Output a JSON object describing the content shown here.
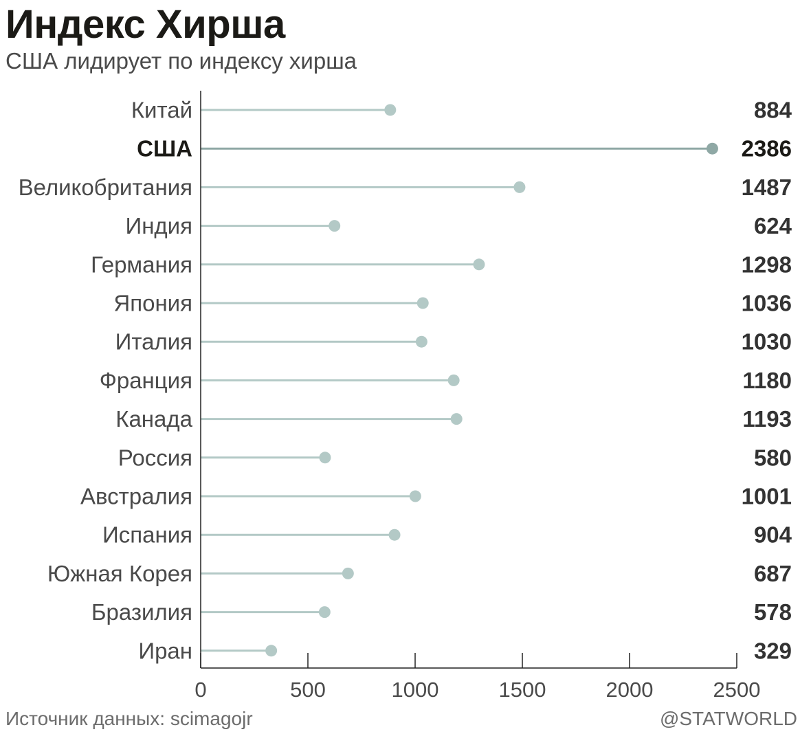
{
  "header": {
    "title": "Индекс Хирша",
    "subtitle": "США лидирует по индексу хирша"
  },
  "footer": {
    "source": "Источник данных: scimagojr",
    "credit": "@STATWORLD"
  },
  "colors": {
    "stem": "#b3c9c6",
    "highlight": "#8fa8a5",
    "axis": "#222222",
    "label": "#4a4a4a",
    "value": "#333333",
    "highlight_text": "#1b1a16"
  },
  "chart_data": {
    "type": "lollipop",
    "categories": [
      "Китай",
      "США",
      "Великобритания",
      "Индия",
      "Германия",
      "Япония",
      "Италия",
      "Франция",
      "Канада",
      "Россия",
      "Австралия",
      "Испания",
      "Южная Корея",
      "Бразилия",
      "Иран"
    ],
    "values": [
      884,
      2386,
      1487,
      624,
      1298,
      1036,
      1030,
      1180,
      1193,
      580,
      1001,
      904,
      687,
      578,
      329
    ],
    "highlight": "США",
    "xlim": [
      0,
      2500
    ],
    "xticks": [
      "0",
      "500",
      "1000",
      "1500",
      "2000",
      "2500"
    ],
    "value_labels": [
      "884",
      "2386",
      "1487",
      "624",
      "1298",
      "1036",
      "1030",
      "1180",
      "1193",
      "580",
      "1001",
      "904",
      "687",
      "578",
      "329"
    ],
    "grid": false,
    "legend": "none"
  }
}
